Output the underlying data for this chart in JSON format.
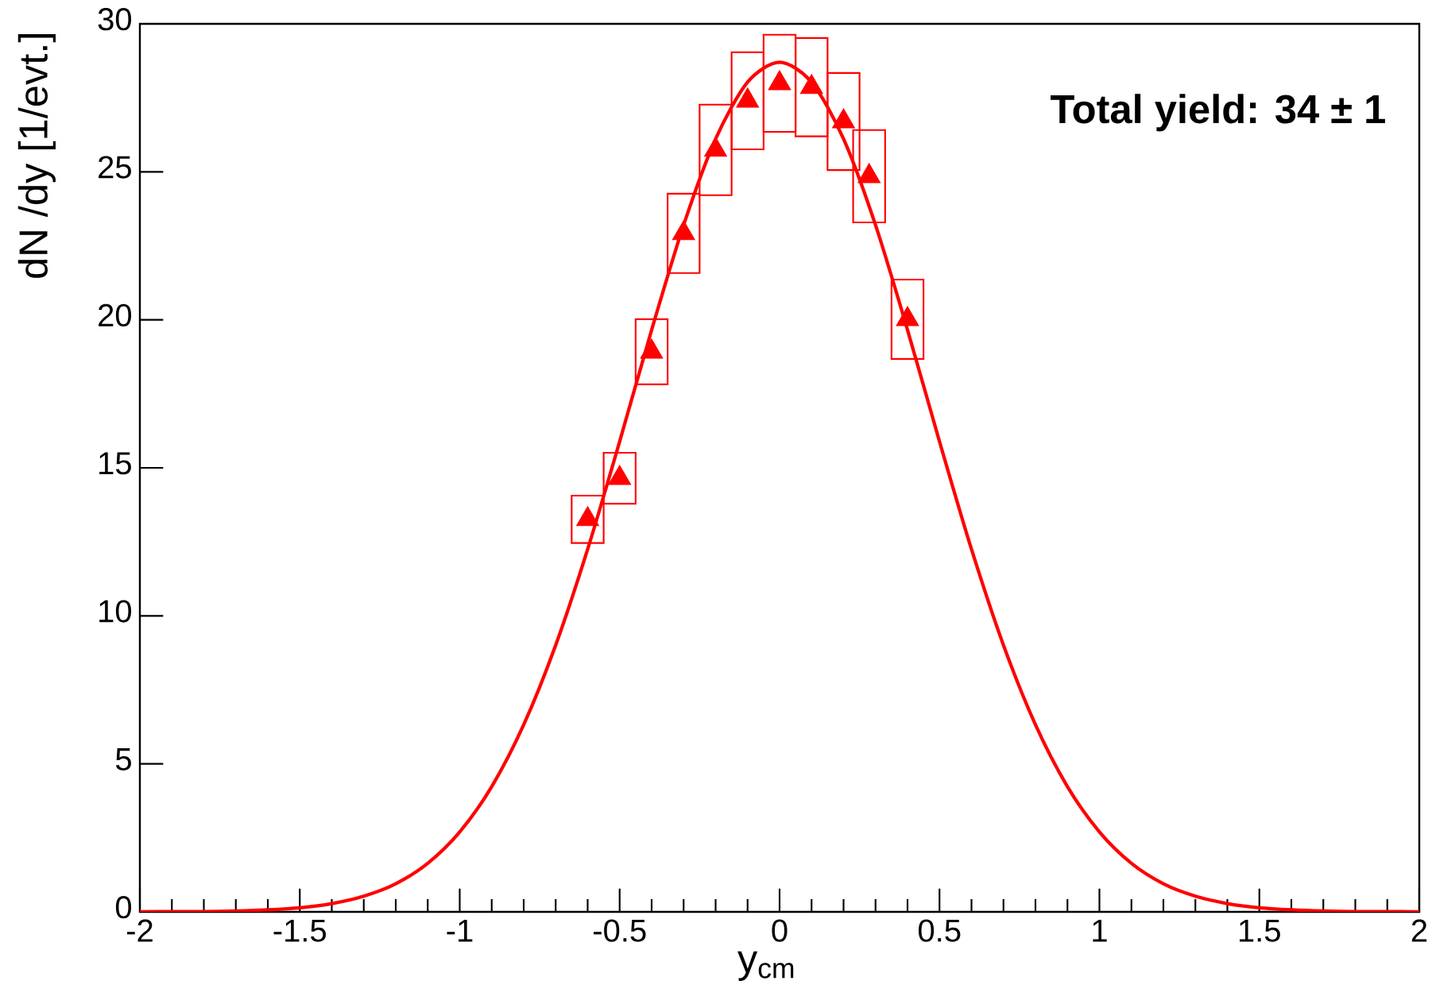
{
  "chart_data": {
    "type": "scatter",
    "xlabel": "y$_{cm}$",
    "ylabel": "dN /dy [1/evt.]",
    "annotations": [
      "Total yield: 34 ± 1"
    ],
    "xlim": [
      -2,
      2
    ],
    "ylim": [
      0,
      30
    ],
    "xticks": [
      -2,
      -1.5,
      -1,
      -0.5,
      0,
      0.5,
      1,
      1.5,
      2
    ],
    "yticks": [
      0,
      5,
      10,
      15,
      20,
      25,
      30
    ],
    "grid": false,
    "series": [
      {
        "type": "bar",
        "color": "#ff0000",
        "x": [
          -0.6,
          -0.5,
          -0.4,
          -0.3,
          -0.2,
          -0.1,
          0.0,
          0.1,
          0.2,
          0.28,
          0.4
        ],
        "base": [
          12.46,
          13.79,
          17.82,
          21.58,
          24.21,
          25.76,
          26.35,
          26.2,
          25.06,
          23.29,
          18.68
        ],
        "values": [
          1.6,
          1.72,
          2.2,
          2.68,
          3.06,
          3.28,
          3.28,
          3.32,
          3.28,
          3.12,
          2.68
        ]
      },
      {
        "color": "#ff0000",
        "marker": "triangle",
        "x": [
          -0.6,
          -0.5,
          -0.4,
          -0.3,
          -0.2,
          -0.1,
          0.0,
          0.1,
          0.2,
          0.28,
          0.4
        ],
        "values": [
          13.26,
          14.65,
          18.92,
          22.92,
          25.74,
          27.4,
          27.99,
          27.86,
          26.7,
          24.85,
          20.02
        ]
      },
      {
        "type": "line",
        "color": "#ff0000",
        "line_style": "solid",
        "marker": "none",
        "x": [
          -2,
          -1.9,
          -1.8,
          -1.7,
          -1.6,
          -1.5,
          -1.4,
          -1.3,
          -1.2,
          -1.1,
          -1.0,
          -0.9,
          -0.8,
          -0.7,
          -0.6,
          -0.5,
          -0.4,
          -0.3,
          -0.2,
          -0.1,
          0,
          0.1,
          0.2,
          0.3,
          0.4,
          0.5,
          0.6,
          0.7,
          0.8,
          0.9,
          1.0,
          1.1,
          1.2,
          1.3,
          1.4,
          1.5,
          1.6,
          1.7,
          1.8,
          1.9,
          2
        ],
        "values": [
          0.0,
          0.01,
          0.01,
          0.03,
          0.07,
          0.14,
          0.28,
          0.53,
          0.95,
          1.64,
          2.7,
          4.23,
          6.32,
          9.01,
          12.25,
          15.89,
          19.66,
          23.2,
          26.11,
          28.03,
          28.7,
          28.03,
          26.11,
          23.2,
          19.66,
          15.89,
          12.25,
          9.01,
          6.32,
          4.23,
          2.7,
          1.64,
          0.95,
          0.53,
          0.28,
          0.14,
          0.07,
          0.03,
          0.01,
          0.01,
          0.0
        ]
      }
    ]
  }
}
